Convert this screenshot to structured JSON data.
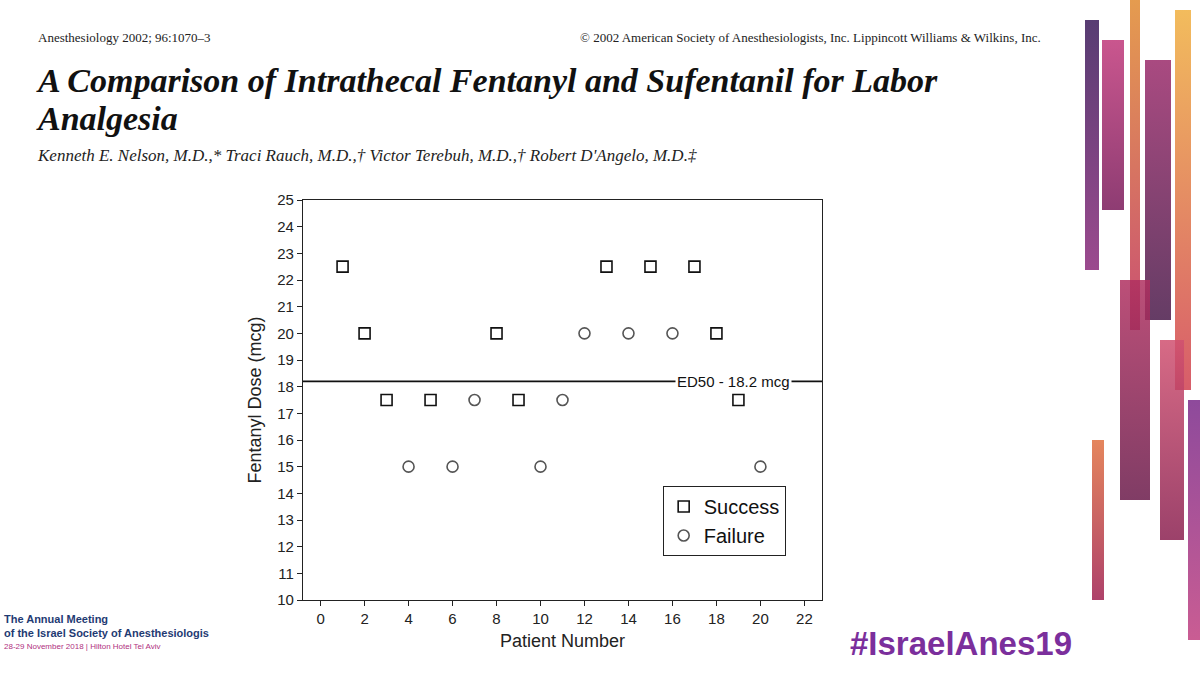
{
  "page": {
    "journal": "Anesthesiology 2002; 96:1070–3",
    "copyright": "© 2002 American Society of Anesthesiologists, Inc. Lippincott Williams & Wilkins, Inc.",
    "title": "A Comparison of Intrathecal Fentanyl and Sufentanil for Labor Analgesia",
    "authors": "Kenneth E. Nelson, M.D.,* Traci Rauch, M.D.,† Victor Terebuh, M.D.,† Robert D'Angelo, M.D.‡",
    "event": [
      "The Annual Meeting",
      "of the Israel Society of Anesthesiologis",
      "28-29 November 2018 | Hilton Hotel Tel Aviv"
    ],
    "hashtag": "#IsraelAnes19"
  },
  "chart_data": {
    "type": "scatter",
    "x_label": "Patient Number",
    "y_label": "Fentanyl Dose (mcg)",
    "xlim": [
      -0.8,
      22.8
    ],
    "xticks": [
      0,
      2,
      4,
      6,
      8,
      10,
      12,
      14,
      16,
      18,
      20,
      22
    ],
    "ylim": [
      10,
      25
    ],
    "yticks": [
      10,
      11,
      12,
      13,
      14,
      15,
      16,
      17,
      18,
      19,
      20,
      21,
      22,
      23,
      24,
      25
    ],
    "grid": false,
    "legend": "lower right",
    "reference_lines": [
      {
        "value": 18.2,
        "label": "ED50 - 18.2 mcg"
      }
    ],
    "series": [
      {
        "name": "Success",
        "color": "#111111",
        "marker": "square-open",
        "x": [
          1,
          2,
          3,
          5,
          8,
          9,
          13,
          15,
          17,
          18,
          19
        ],
        "values": [
          22.5,
          20,
          17.5,
          17.5,
          20,
          17.5,
          22.5,
          22.5,
          22.5,
          20,
          17.5
        ]
      },
      {
        "name": "Failure",
        "color": "#555555",
        "marker": "circle-open",
        "x": [
          4,
          6,
          7,
          10,
          11,
          12,
          14,
          16,
          20
        ],
        "values": [
          15,
          15,
          17.5,
          15,
          17.5,
          20,
          20,
          20,
          15
        ]
      }
    ]
  }
}
